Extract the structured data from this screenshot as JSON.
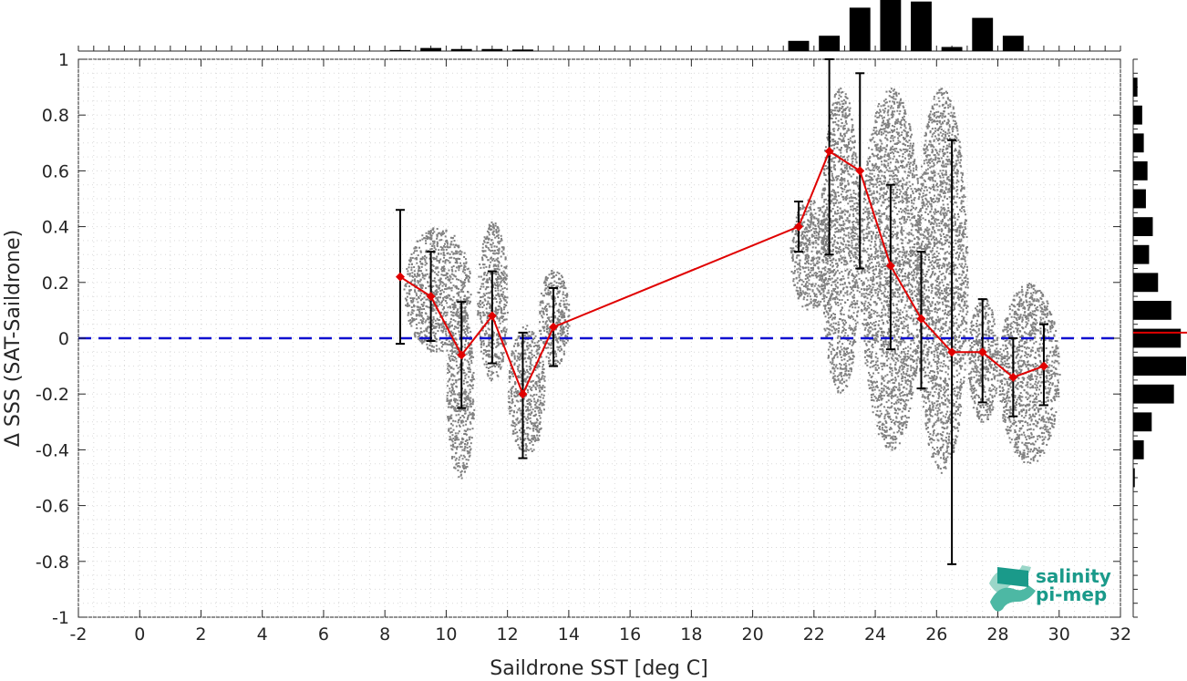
{
  "chart_data": {
    "type": "scatter",
    "title": "",
    "xlabel": "Saildrone SST [deg C]",
    "ylabel": "Δ SSS (SAT-Saildrone)",
    "xlim": [
      -2,
      32
    ],
    "ylim": [
      -1,
      1
    ],
    "x_ticks": [
      "-2",
      "0",
      "2",
      "4",
      "6",
      "8",
      "10",
      "12",
      "14",
      "16",
      "18",
      "20",
      "22",
      "24",
      "26",
      "28",
      "30",
      "32"
    ],
    "y_ticks": [
      "-1",
      "-0.8",
      "-0.6",
      "-0.4",
      "-0.2",
      "0",
      "0.2",
      "0.4",
      "0.6",
      "0.8",
      "1"
    ],
    "grid": "dotted",
    "reference_line": {
      "y": 0,
      "style": "dashed",
      "color": "#1010d0"
    },
    "scatter_color": "#808080",
    "scatter_clusters": [
      {
        "x": [
          8.6,
          10.8
        ],
        "y": [
          -0.05,
          0.4
        ]
      },
      {
        "x": [
          10.0,
          10.9
        ],
        "y": [
          -0.5,
          0.12
        ]
      },
      {
        "x": [
          11.0,
          12.0
        ],
        "y": [
          -0.15,
          0.42
        ]
      },
      {
        "x": [
          12.0,
          13.2
        ],
        "y": [
          -0.42,
          0.05
        ]
      },
      {
        "x": [
          13.0,
          14.0
        ],
        "y": [
          -0.1,
          0.25
        ]
      },
      {
        "x": [
          21.2,
          22.5
        ],
        "y": [
          0.1,
          0.5
        ]
      },
      {
        "x": [
          22.2,
          23.5
        ],
        "y": [
          -0.2,
          0.9
        ]
      },
      {
        "x": [
          23.5,
          25.5
        ],
        "y": [
          -0.4,
          0.9
        ]
      },
      {
        "x": [
          25.3,
          27.0
        ],
        "y": [
          -0.48,
          0.9
        ]
      },
      {
        "x": [
          27.0,
          28.0
        ],
        "y": [
          -0.3,
          0.15
        ]
      },
      {
        "x": [
          28.0,
          30.0
        ],
        "y": [
          -0.45,
          0.2
        ]
      }
    ],
    "series": [
      {
        "marker": "diamond",
        "color": "#e00000",
        "points": [
          {
            "x": 8.5,
            "y": 0.22,
            "err_low": -0.02,
            "err_high": 0.46
          },
          {
            "x": 9.5,
            "y": 0.15,
            "err_low": -0.01,
            "err_high": 0.31
          },
          {
            "x": 10.5,
            "y": -0.06,
            "err_low": -0.25,
            "err_high": 0.13
          },
          {
            "x": 11.5,
            "y": 0.08,
            "err_low": -0.09,
            "err_high": 0.24
          },
          {
            "x": 12.5,
            "y": -0.2,
            "err_low": -0.43,
            "err_high": 0.02
          },
          {
            "x": 13.5,
            "y": 0.04,
            "err_low": -0.1,
            "err_high": 0.18
          },
          {
            "x": 21.5,
            "y": 0.4,
            "err_low": 0.31,
            "err_high": 0.49
          },
          {
            "x": 22.5,
            "y": 0.67,
            "err_low": 0.3,
            "err_high": 1.0
          },
          {
            "x": 23.5,
            "y": 0.6,
            "err_low": 0.25,
            "err_high": 0.95
          },
          {
            "x": 24.5,
            "y": 0.26,
            "err_low": -0.04,
            "err_high": 0.55
          },
          {
            "x": 25.5,
            "y": 0.07,
            "err_low": -0.18,
            "err_high": 0.31
          },
          {
            "x": 26.5,
            "y": -0.05,
            "err_low": -0.81,
            "err_high": 0.71
          },
          {
            "x": 27.5,
            "y": -0.05,
            "err_low": -0.23,
            "err_high": 0.14
          },
          {
            "x": 28.5,
            "y": -0.14,
            "err_low": -0.28,
            "err_high": 0.0
          },
          {
            "x": 29.5,
            "y": -0.1,
            "err_low": -0.24,
            "err_high": 0.05
          }
        ]
      }
    ],
    "top_histogram": {
      "bin_centers": [
        8.5,
        9.5,
        10.5,
        11.5,
        12.5,
        13.5,
        21.5,
        22.5,
        23.5,
        24.5,
        25.5,
        26.5,
        27.5,
        28.5,
        29.5
      ],
      "relative_counts": [
        0.02,
        0.06,
        0.04,
        0.04,
        0.03,
        0.0,
        0.2,
        0.3,
        0.85,
        1.0,
        0.97,
        0.08,
        0.65,
        0.3,
        0.0
      ]
    },
    "right_histogram": {
      "bin_centers": [
        0.9,
        0.8,
        0.7,
        0.6,
        0.5,
        0.4,
        0.3,
        0.2,
        0.1,
        0.0,
        -0.1,
        -0.2,
        -0.3,
        -0.4,
        -0.5
      ],
      "relative_counts": [
        0.08,
        0.17,
        0.2,
        0.27,
        0.24,
        0.37,
        0.3,
        0.47,
        0.72,
        0.9,
        1.0,
        0.77,
        0.35,
        0.2,
        0.03
      ]
    },
    "right_histogram_marker": {
      "y": 0.02,
      "color": "#e00000"
    }
  },
  "logo": {
    "line1": "salinity",
    "line2": "pi-mep",
    "color": "#1a9a8a"
  }
}
